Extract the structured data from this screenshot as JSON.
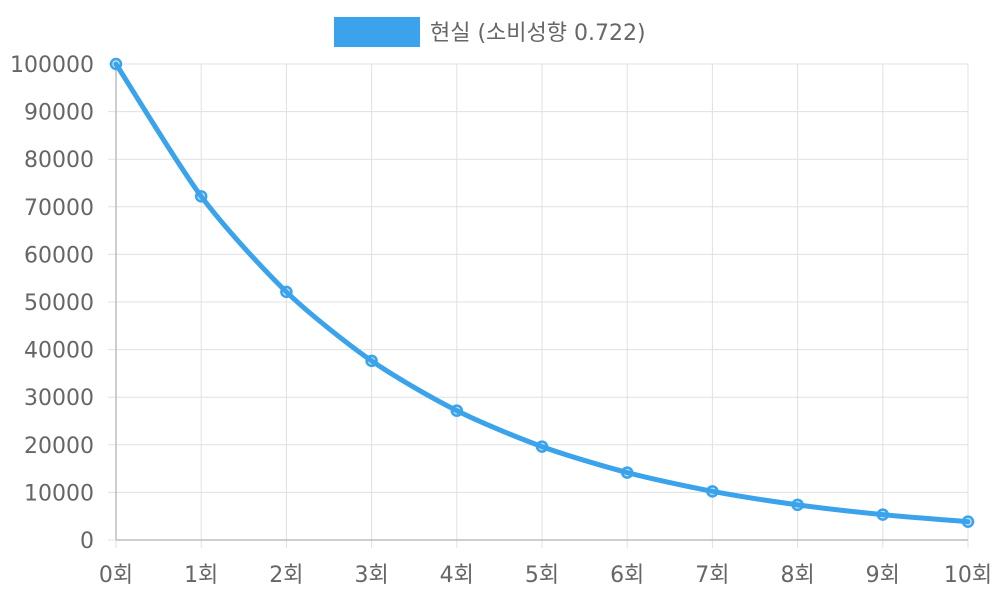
{
  "chart_data": {
    "type": "line",
    "legend": {
      "position": "top",
      "color": "#3aa3eb"
    },
    "x": [
      "0회",
      "1회",
      "2회",
      "3회",
      "4회",
      "5회",
      "6회",
      "7회",
      "8회",
      "9회",
      "10회"
    ],
    "series": [
      {
        "name": "현실 (소비성향 0.722)",
        "color": "#3aa3eb",
        "values": [
          100000,
          72200,
          52128,
          37637,
          27174,
          19620,
          14165,
          10227,
          7384,
          5331,
          3849
        ]
      }
    ],
    "y_ticks": [
      "0",
      "10000",
      "20000",
      "30000",
      "40000",
      "50000",
      "60000",
      "70000",
      "80000",
      "90000",
      "100000"
    ],
    "ylim": [
      0,
      100000
    ],
    "grid": true
  }
}
